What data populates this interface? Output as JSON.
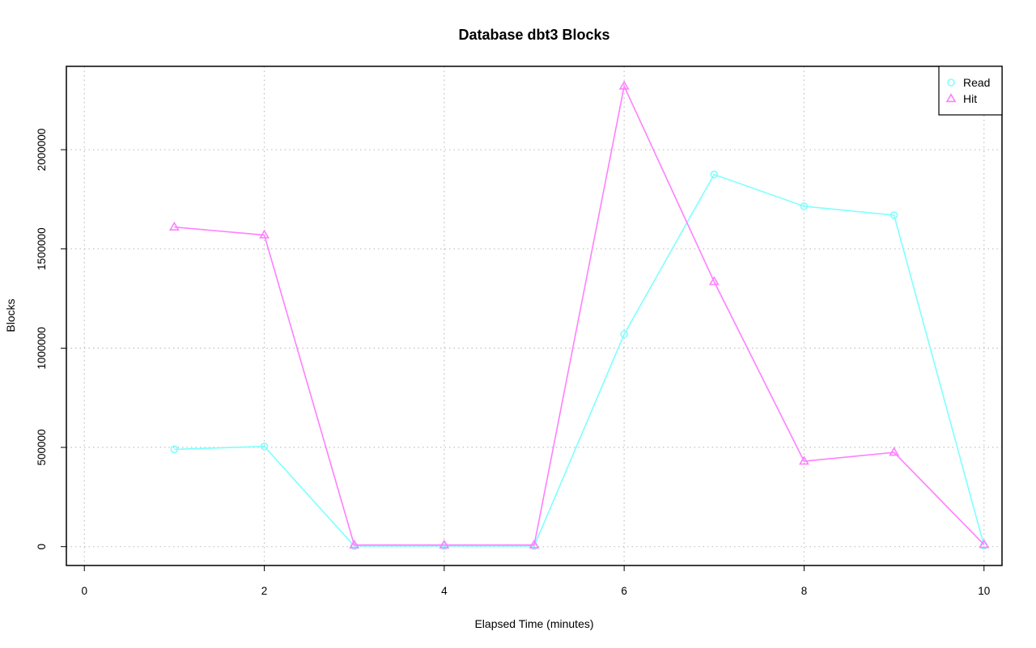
{
  "chart_data": {
    "type": "line",
    "title": "Database dbt3 Blocks",
    "xlabel": "Elapsed Time (minutes)",
    "ylabel": "Blocks",
    "xlim": [
      -0.2,
      10.2
    ],
    "ylim": [
      -95000,
      2420000
    ],
    "xticks": [
      0,
      2,
      4,
      6,
      8,
      10
    ],
    "xtick_labels": [
      "0",
      "2",
      "4",
      "6",
      "8",
      "10"
    ],
    "yticks": [
      0,
      500000,
      1000000,
      1500000,
      2000000
    ],
    "ytick_labels": [
      "0",
      "500000",
      "1000000",
      "1500000",
      "2000000"
    ],
    "grid": true,
    "legend_position": "top-right",
    "x": [
      1,
      2,
      3,
      4,
      5,
      6,
      7,
      8,
      9,
      10
    ],
    "series": [
      {
        "name": "Read",
        "color": "#7fffff",
        "marker": "circle",
        "values": [
          490000,
          505000,
          3000,
          3000,
          3000,
          1070000,
          1875000,
          1715000,
          1670000,
          5000
        ]
      },
      {
        "name": "Hit",
        "color": "#ff7fff",
        "marker": "triangle",
        "values": [
          1610000,
          1570000,
          8000,
          8000,
          8000,
          2320000,
          1335000,
          430000,
          475000,
          10000
        ]
      }
    ]
  }
}
